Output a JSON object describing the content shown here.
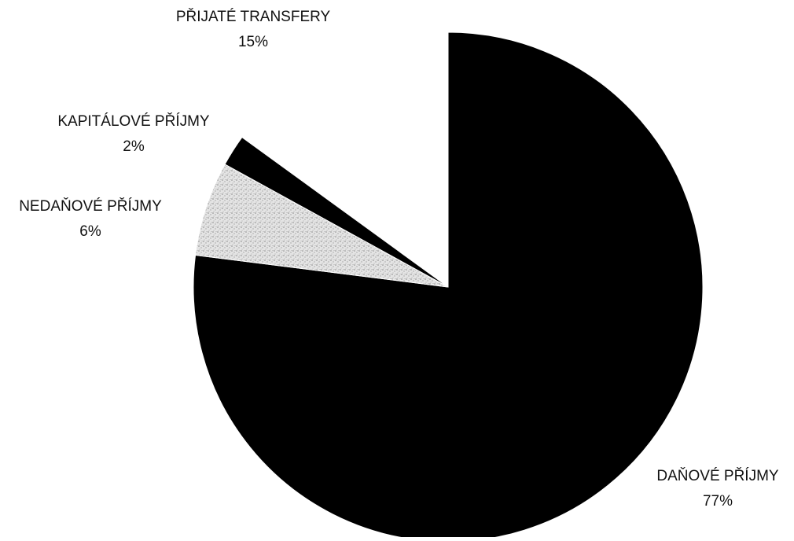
{
  "chart_data": {
    "type": "pie",
    "slices": [
      {
        "label": "DAŇOVÉ PŘÍJMY",
        "value": 77,
        "value_label": "77%",
        "color": "#000000",
        "pattern": "solid"
      },
      {
        "label": "NEDAŇOVÉ PŘÍJMY",
        "value": 6,
        "value_label": "6%",
        "color": "#d8d8d8",
        "pattern": "speckled"
      },
      {
        "label": "KAPITÁLOVÉ PŘÍJMY",
        "value": 2,
        "value_label": "2%",
        "color": "#000000",
        "pattern": "solid"
      },
      {
        "label": "PŘIJATÉ TRANSFERY",
        "value": 15,
        "value_label": "15%",
        "color": "#ffffff",
        "pattern": "none"
      }
    ],
    "legend": "none",
    "data_labels": "outside, label and percentage"
  }
}
